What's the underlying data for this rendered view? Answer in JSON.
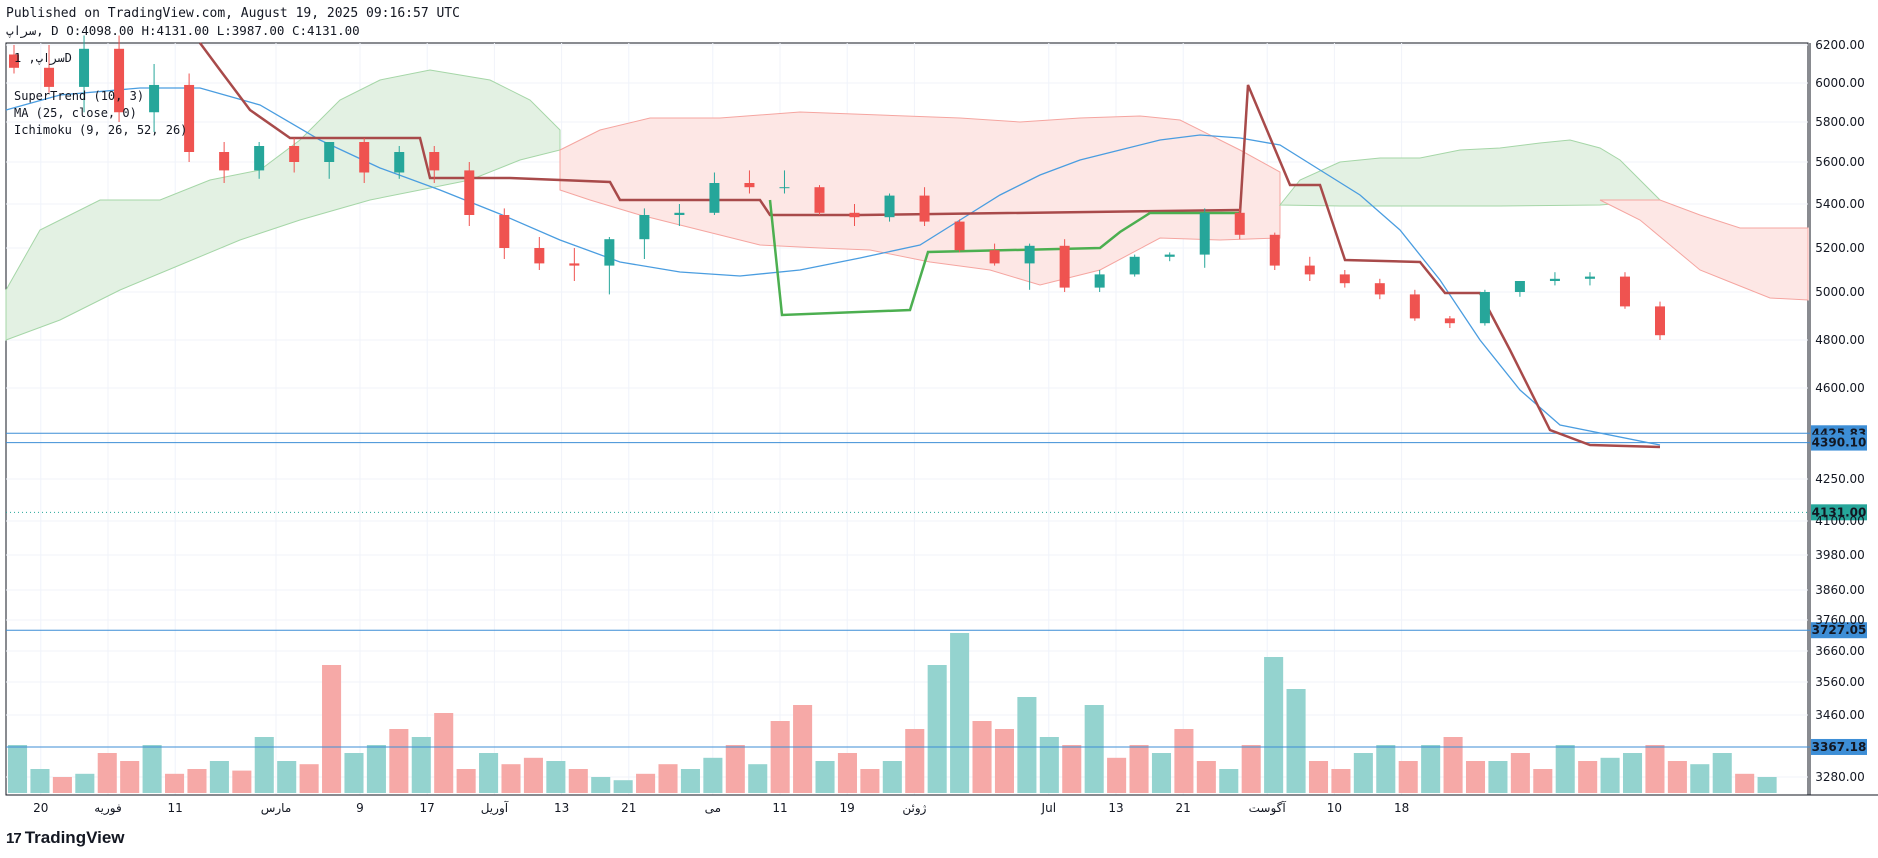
{
  "header": {
    "published": "Published on TradingView.com, August 19, 2025 09:16:57 UTC",
    "symbol_line": "سراپ, D O:4098.00 H:4131.00 L:3987.00 C:4131.00"
  },
  "legend": {
    "symbol": "سراپ, 1D",
    "indicators": [
      "SuperTrend (10, 3)",
      "MA (25, close, 0)",
      "Ichimoku (9, 26, 52, 26)"
    ]
  },
  "footer": {
    "brand": "TradingView"
  },
  "colors": {
    "up": "#26a69a",
    "down": "#ef5350",
    "vol_up": "#94d3cf",
    "vol_down": "#f6a9a7",
    "ma": "#4a9de0",
    "supertrend_down": "#a84a4a",
    "supertrend_up": "#4caf50",
    "cloud_green": "#e3f1e3",
    "cloud_red": "#fde7e5",
    "hline": "#3d8ed6",
    "grid": "#f0f3fa",
    "last_price": "#26a69a"
  },
  "chart_data": {
    "type": "candlestick",
    "title": "",
    "symbol": "سراپ",
    "interval": "1D",
    "ohlc_last": {
      "open": 4098,
      "high": 4131,
      "low": 3987,
      "close": 4131
    },
    "y_ticks": [
      6200,
      6000,
      5800,
      5600,
      5400,
      5200,
      5000,
      4800,
      4600,
      4250,
      4100,
      3980,
      3860,
      3760,
      3660,
      3560,
      3460,
      3280
    ],
    "x_ticks": [
      {
        "label": "20",
        "i": 1
      },
      {
        "label": "فوریه",
        "i": 5
      },
      {
        "label": "11",
        "i": 9
      },
      {
        "label": "مارس",
        "i": 15
      },
      {
        "label": "9",
        "i": 20
      },
      {
        "label": "17",
        "i": 24
      },
      {
        "label": "آوریل",
        "i": 28
      },
      {
        "label": "13",
        "i": 32
      },
      {
        "label": "21",
        "i": 36
      },
      {
        "label": "می",
        "i": 41
      },
      {
        "label": "11",
        "i": 45
      },
      {
        "label": "19",
        "i": 49
      },
      {
        "label": "ژوئن",
        "i": 53
      },
      {
        "label": "Jul",
        "i": 61
      },
      {
        "label": "13",
        "i": 65
      },
      {
        "label": "21",
        "i": 69
      },
      {
        "label": "آگوست",
        "i": 74
      },
      {
        "label": "10",
        "i": 78
      },
      {
        "label": "18",
        "i": 82
      }
    ],
    "horizontal_lines": [
      {
        "label": "4425.83",
        "value": 4425.83,
        "style": "solid"
      },
      {
        "label": "4390.10",
        "value": 4390.1,
        "style": "solid"
      },
      {
        "label": "3727.05",
        "value": 3727.05,
        "style": "solid"
      },
      {
        "label": "3367.18",
        "value": 3367.18,
        "style": "solid"
      }
    ],
    "last_price": {
      "label": "4131.00",
      "value": 4131
    },
    "candles": [
      {
        "o": 6150,
        "h": 6200,
        "l": 6050,
        "c": 6080
      },
      {
        "o": 6080,
        "h": 6200,
        "l": 5950,
        "c": 5980
      },
      {
        "o": 5980,
        "h": 6250,
        "l": 5850,
        "c": 6180
      },
      {
        "o": 6180,
        "h": 6250,
        "l": 5800,
        "c": 5850
      },
      {
        "o": 5850,
        "h": 6100,
        "l": 5750,
        "c": 5990
      },
      {
        "o": 5990,
        "h": 6050,
        "l": 5600,
        "c": 5650
      },
      {
        "o": 5650,
        "h": 5700,
        "l": 5500,
        "c": 5560
      },
      {
        "o": 5560,
        "h": 5700,
        "l": 5520,
        "c": 5680
      },
      {
        "o": 5680,
        "h": 5720,
        "l": 5550,
        "c": 5600
      },
      {
        "o": 5600,
        "h": 5700,
        "l": 5520,
        "c": 5700
      },
      {
        "o": 5700,
        "h": 5720,
        "l": 5500,
        "c": 5550
      },
      {
        "o": 5550,
        "h": 5680,
        "l": 5520,
        "c": 5650
      },
      {
        "o": 5650,
        "h": 5680,
        "l": 5500,
        "c": 5560
      },
      {
        "o": 5560,
        "h": 5600,
        "l": 5300,
        "c": 5350
      },
      {
        "o": 5350,
        "h": 5380,
        "l": 5150,
        "c": 5200
      },
      {
        "o": 5200,
        "h": 5250,
        "l": 5100,
        "c": 5130
      },
      {
        "o": 5130,
        "h": 5200,
        "l": 5050,
        "c": 5120
      },
      {
        "o": 5120,
        "h": 5250,
        "l": 4990,
        "c": 5240
      },
      {
        "o": 5240,
        "h": 5380,
        "l": 5150,
        "c": 5350
      },
      {
        "o": 5350,
        "h": 5400,
        "l": 5300,
        "c": 5360
      },
      {
        "o": 5360,
        "h": 5550,
        "l": 5350,
        "c": 5500
      },
      {
        "o": 5500,
        "h": 5560,
        "l": 5450,
        "c": 5480
      },
      {
        "o": 5480,
        "h": 5560,
        "l": 5450,
        "c": 5480
      },
      {
        "o": 5480,
        "h": 5490,
        "l": 5350,
        "c": 5360
      },
      {
        "o": 5360,
        "h": 5400,
        "l": 5300,
        "c": 5340
      },
      {
        "o": 5340,
        "h": 5450,
        "l": 5320,
        "c": 5440
      },
      {
        "o": 5440,
        "h": 5480,
        "l": 5300,
        "c": 5320
      },
      {
        "o": 5320,
        "h": 5330,
        "l": 5180,
        "c": 5190
      },
      {
        "o": 5190,
        "h": 5220,
        "l": 5120,
        "c": 5130
      },
      {
        "o": 5130,
        "h": 5220,
        "l": 5010,
        "c": 5210
      },
      {
        "o": 5210,
        "h": 5240,
        "l": 5000,
        "c": 5020
      },
      {
        "o": 5020,
        "h": 5100,
        "l": 5000,
        "c": 5080
      },
      {
        "o": 5080,
        "h": 5170,
        "l": 5070,
        "c": 5160
      },
      {
        "o": 5160,
        "h": 5180,
        "l": 5140,
        "c": 5170
      },
      {
        "o": 5170,
        "h": 5380,
        "l": 5110,
        "c": 5360
      },
      {
        "o": 5360,
        "h": 5380,
        "l": 5240,
        "c": 5260
      },
      {
        "o": 5260,
        "h": 5270,
        "l": 5100,
        "c": 5120
      },
      {
        "o": 5120,
        "h": 5160,
        "l": 5050,
        "c": 5080
      },
      {
        "o": 5080,
        "h": 5100,
        "l": 5020,
        "c": 5040
      },
      {
        "o": 5040,
        "h": 5060,
        "l": 4970,
        "c": 4990
      },
      {
        "o": 4990,
        "h": 5010,
        "l": 4880,
        "c": 4890
      },
      {
        "o": 4890,
        "h": 4900,
        "l": 4850,
        "c": 4870
      },
      {
        "o": 4870,
        "h": 5010,
        "l": 4860,
        "c": 5000
      },
      {
        "o": 5000,
        "h": 5050,
        "l": 4980,
        "c": 5050
      },
      {
        "o": 5050,
        "h": 5090,
        "l": 5030,
        "c": 5060
      },
      {
        "o": 5060,
        "h": 5090,
        "l": 5030,
        "c": 5070
      },
      {
        "o": 5070,
        "h": 5090,
        "l": 4930,
        "c": 4940
      },
      {
        "o": 4940,
        "h": 4960,
        "l": 4800,
        "c": 4820
      }
    ],
    "volume_scale": {
      "max": 100
    }
  }
}
